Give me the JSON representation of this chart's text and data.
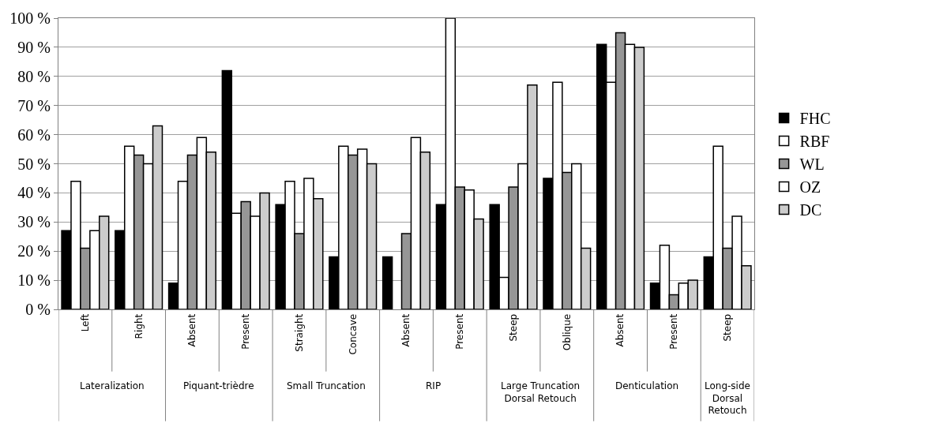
{
  "chart_data": {
    "type": "bar",
    "categories": [
      "Left",
      "Right",
      "Absent",
      "Present",
      "Straight",
      "Concave",
      "Absent",
      "Present",
      "Steep",
      "Oblique",
      "Absent",
      "Present",
      "Steep"
    ],
    "annotations": [
      "Lateralization",
      "Piquant-trièdre",
      "Small Truncation",
      "RIP",
      "Large Truncation\nDorsal Retouch",
      "Denticulation",
      "Long-side\nDorsal\nRetouch"
    ],
    "series": [
      {
        "name": "FHC",
        "color": "#000000",
        "values": [
          27,
          27,
          9,
          82,
          36,
          18,
          18,
          36,
          36,
          45,
          91,
          9,
          18
        ]
      },
      {
        "name": "RBF",
        "color": "#ffffff",
        "values": [
          44,
          56,
          44,
          33,
          44,
          56,
          null,
          100,
          11,
          78,
          78,
          22,
          56
        ]
      },
      {
        "name": "WL",
        "color": "#969696",
        "values": [
          21,
          53,
          53,
          37,
          26,
          53,
          26,
          42,
          42,
          47,
          95,
          5,
          21
        ]
      },
      {
        "name": "OZ",
        "color": "#ffffff",
        "values": [
          27,
          50,
          59,
          32,
          45,
          55,
          59,
          41,
          50,
          50,
          91,
          9,
          32
        ]
      },
      {
        "name": "DC",
        "color": "#cccccc",
        "values": [
          32,
          63,
          54,
          40,
          38,
          50,
          54,
          31,
          77,
          21,
          90,
          10,
          15
        ]
      }
    ],
    "ylim": [
      0,
      100
    ],
    "yticks": [
      {
        "value": 0,
        "label": "0 %"
      },
      {
        "value": 10,
        "label": "10 %"
      },
      {
        "value": 20,
        "label": "20 %"
      },
      {
        "value": 30,
        "label": "30 %"
      },
      {
        "value": 40,
        "label": "40 %"
      },
      {
        "value": 50,
        "label": "50 %"
      },
      {
        "value": 60,
        "label": "60 %"
      },
      {
        "value": 70,
        "label": "70 %"
      },
      {
        "value": 80,
        "label": "80 %"
      },
      {
        "value": 90,
        "label": "90 %"
      },
      {
        "value": 100,
        "label": "100 %"
      }
    ],
    "grid": "y",
    "legend": "right"
  }
}
